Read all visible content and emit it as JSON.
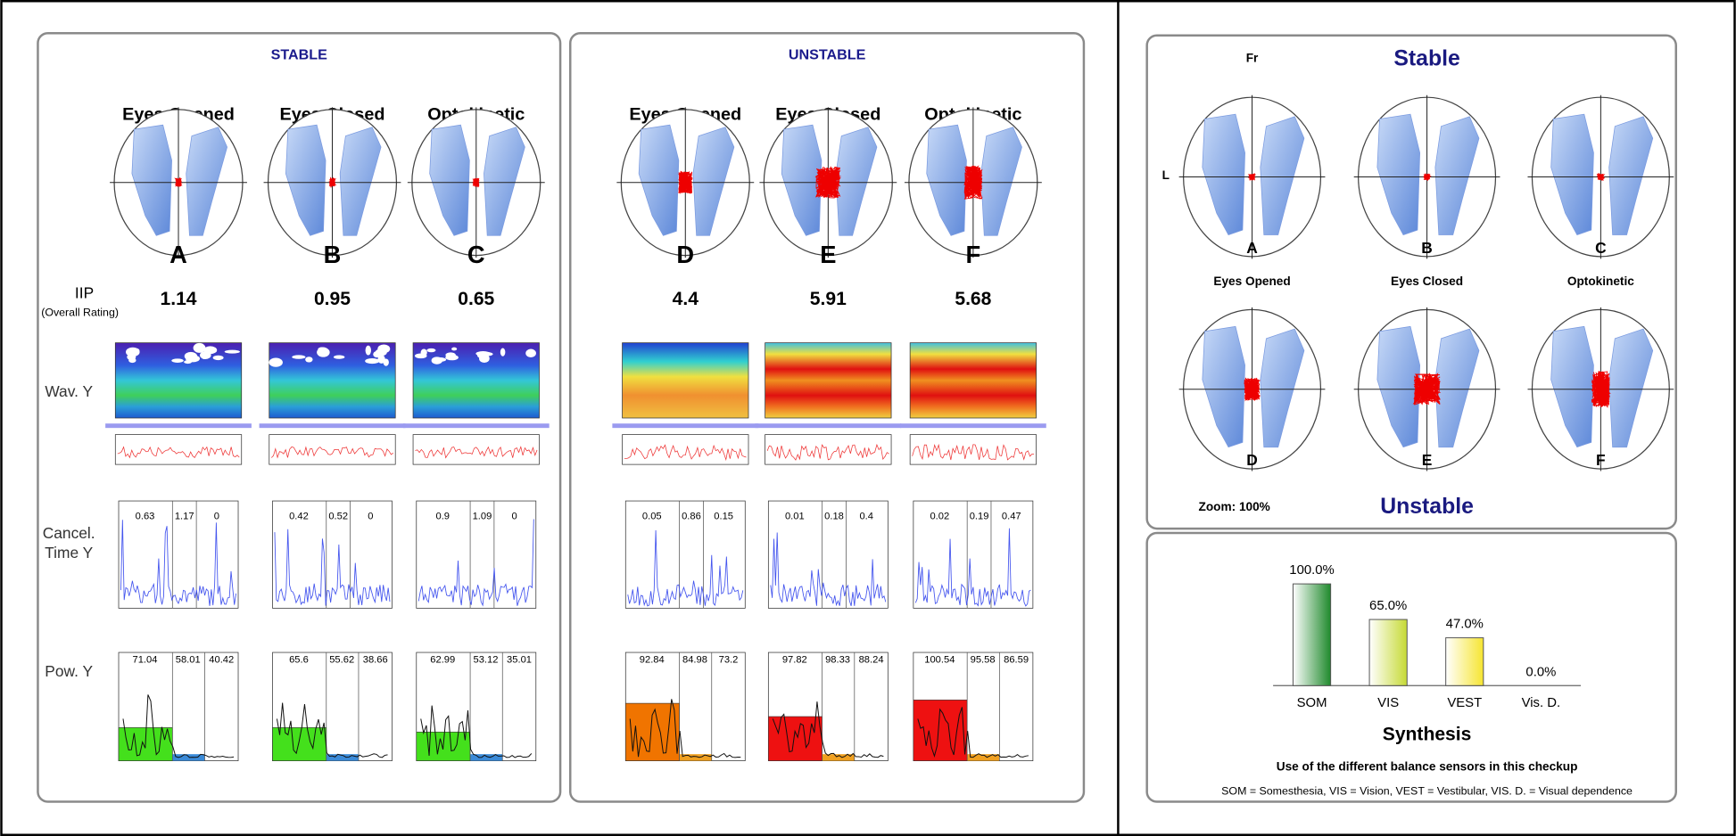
{
  "row_labels": {
    "iip": "IIP",
    "iip_note": "(Overall Rating)",
    "wav": "Wav. Y",
    "cancel_1": "Cancel.",
    "cancel_2": "Time Y",
    "power": "Pow. Y"
  },
  "stable_panel": {
    "title": "STABLE",
    "conditions": [
      {
        "title": "Eyes Opened",
        "letter": "A",
        "iip": 1.14,
        "cancel": [
          0.63,
          1.17,
          0
        ],
        "power": [
          71.04,
          58.01,
          40.42
        ]
      },
      {
        "title": "Eyes Closed",
        "letter": "B",
        "iip": 0.95,
        "cancel": [
          0.42,
          0.52,
          0
        ],
        "power": [
          65.6,
          55.62,
          38.66
        ]
      },
      {
        "title": "Optokinetic",
        "letter": "C",
        "iip": 0.65,
        "cancel": [
          0.9,
          1.09,
          0
        ],
        "power": [
          62.99,
          53.12,
          35.01
        ]
      }
    ]
  },
  "unstable_panel": {
    "title": "UNSTABLE",
    "conditions": [
      {
        "title": "Eyes Opened",
        "letter": "D",
        "iip": 4.4,
        "cancel": [
          0.05,
          0.86,
          0.15
        ],
        "power": [
          92.84,
          84.98,
          73.2
        ]
      },
      {
        "title": "Eyes Closed",
        "letter": "E",
        "iip": 5.91,
        "cancel": [
          0.01,
          0.18,
          0.4
        ],
        "power": [
          97.82,
          98.33,
          88.24
        ]
      },
      {
        "title": "Optokinetic",
        "letter": "F",
        "iip": 5.68,
        "cancel": [
          0.02,
          0.19,
          0.47
        ],
        "power": [
          100.54,
          95.58,
          86.59
        ]
      }
    ]
  },
  "summary": {
    "title_top": "Stable",
    "title_bottom": "Unstable",
    "front_label": "Fr",
    "left_label": "L",
    "zoom": "Zoom: 100%",
    "letters": [
      "A",
      "B",
      "C",
      "D",
      "E",
      "F"
    ],
    "conditions": [
      "Eyes Opened",
      "Eyes Closed",
      "Optokinetic"
    ]
  },
  "synthesis": {
    "title": "Synthesis",
    "subtitle": "Use of the different balance sensors in this checkup",
    "legend": "SOM = Somesthesia, VIS = Vision, VEST = Vestibular, VIS. D. = Visual dependence",
    "categories": [
      "SOM",
      "VIS",
      "VEST",
      "Vis. D."
    ],
    "values": [
      100,
      65,
      47,
      0
    ],
    "value_labels": [
      "100.0%",
      "65.0%",
      "47.0%",
      "0.0%"
    ],
    "colors": [
      "#1f8a2c",
      "#c6da35",
      "#f6e531",
      "#cccccc"
    ]
  }
}
